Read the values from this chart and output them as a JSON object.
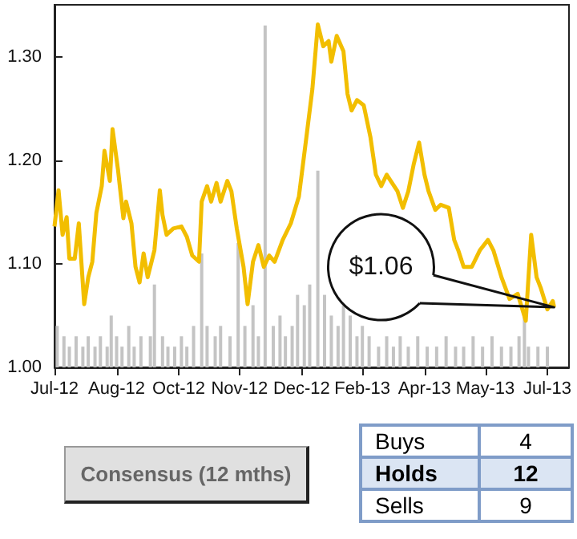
{
  "chart_data": [
    {
      "type": "line",
      "xlim": [
        "2012-07-01",
        "2013-07-17"
      ],
      "ylim": [
        1.0,
        1.35
      ],
      "xticks": [
        {
          "value": "2012-07-01",
          "label": "Jul-12"
        },
        {
          "value": "2012-08-16",
          "label": "Aug-12"
        },
        {
          "value": "2012-10-01",
          "label": "Oct-12"
        },
        {
          "value": "2012-11-15",
          "label": "Nov-12"
        },
        {
          "value": "2012-12-31",
          "label": "Dec-12"
        },
        {
          "value": "2013-02-14",
          "label": "Feb-13"
        },
        {
          "value": "2013-04-01",
          "label": "Apr-13"
        },
        {
          "value": "2013-05-16",
          "label": "May-13"
        },
        {
          "value": "2013-07-01",
          "label": "Jul-13"
        }
      ],
      "yticks": [
        {
          "value": 1.0,
          "label": "1.00"
        },
        {
          "value": 1.1,
          "label": "1.10"
        },
        {
          "value": 1.2,
          "label": "1.20"
        },
        {
          "value": 1.3,
          "label": "1.30"
        }
      ],
      "grid": false,
      "marker": "none",
      "annotations": [
        "$1.06"
      ],
      "series": [
        {
          "type": "bar",
          "color": "#c4c4c4",
          "x": [
            "2012-07-03",
            "2012-07-08",
            "2012-07-12",
            "2012-07-17",
            "2012-07-22",
            "2012-07-26",
            "2012-07-31",
            "2012-08-04",
            "2012-08-09",
            "2012-08-12",
            "2012-08-16",
            "2012-08-20",
            "2012-08-25",
            "2012-08-29",
            "2012-09-03",
            "2012-09-10",
            "2012-09-13",
            "2012-09-19",
            "2012-09-23",
            "2012-09-28",
            "2012-10-03",
            "2012-10-07",
            "2012-10-12",
            "2012-10-18",
            "2012-10-22",
            "2012-10-28",
            "2012-11-01",
            "2012-11-08",
            "2012-11-14",
            "2012-11-19",
            "2012-11-25",
            "2012-11-29",
            "2012-12-04",
            "2012-12-10",
            "2012-12-15",
            "2012-12-19",
            "2012-12-24",
            "2012-12-28",
            "2013-01-02",
            "2013-01-06",
            "2013-01-12",
            "2013-01-17",
            "2013-01-22",
            "2013-01-27",
            "2013-01-31",
            "2013-02-05",
            "2013-02-10",
            "2013-02-14",
            "2013-02-19",
            "2013-02-26",
            "2013-03-04",
            "2013-03-09",
            "2013-03-14",
            "2013-03-20",
            "2013-03-27",
            "2013-04-03",
            "2013-04-10",
            "2013-04-17",
            "2013-04-24",
            "2013-04-30",
            "2013-05-07",
            "2013-05-14",
            "2013-05-21",
            "2013-05-28",
            "2013-06-04",
            "2013-06-10",
            "2013-06-14",
            "2013-06-17",
            "2013-06-24",
            "2013-07-01"
          ],
          "values": [
            1.04,
            1.03,
            1.02,
            1.03,
            1.02,
            1.03,
            1.02,
            1.03,
            1.02,
            1.05,
            1.03,
            1.02,
            1.04,
            1.02,
            1.03,
            1.03,
            1.08,
            1.03,
            1.02,
            1.02,
            1.03,
            1.02,
            1.04,
            1.11,
            1.04,
            1.03,
            1.04,
            1.03,
            1.12,
            1.04,
            1.06,
            1.03,
            1.33,
            1.04,
            1.05,
            1.03,
            1.04,
            1.07,
            1.06,
            1.08,
            1.19,
            1.07,
            1.05,
            1.04,
            1.06,
            1.05,
            1.03,
            1.04,
            1.03,
            1.02,
            1.03,
            1.02,
            1.03,
            1.02,
            1.03,
            1.02,
            1.02,
            1.03,
            1.02,
            1.02,
            1.03,
            1.02,
            1.03,
            1.02,
            1.02,
            1.03,
            1.05,
            1.02,
            1.02,
            1.02
          ]
        },
        {
          "color": "#f2be00",
          "x": [
            "2012-07-01",
            "2012-07-04",
            "2012-07-07",
            "2012-07-10",
            "2012-07-12",
            "2012-07-16",
            "2012-07-19",
            "2012-07-23",
            "2012-07-26",
            "2012-07-29",
            "2012-08-01",
            "2012-08-05",
            "2012-08-07",
            "2012-08-11",
            "2012-08-13",
            "2012-08-17",
            "2012-08-21",
            "2012-08-23",
            "2012-08-27",
            "2012-08-30",
            "2012-09-02",
            "2012-09-05",
            "2012-09-08",
            "2012-09-13",
            "2012-09-17",
            "2012-09-19",
            "2012-09-22",
            "2012-09-27",
            "2012-10-03",
            "2012-10-07",
            "2012-10-11",
            "2012-10-16",
            "2012-10-18",
            "2012-10-22",
            "2012-10-25",
            "2012-10-29",
            "2012-11-01",
            "2012-11-06",
            "2012-11-09",
            "2012-11-13",
            "2012-11-18",
            "2012-11-21",
            "2012-11-25",
            "2012-11-29",
            "2012-12-03",
            "2012-12-07",
            "2012-12-11",
            "2012-12-17",
            "2012-12-23",
            "2012-12-29",
            "2013-01-04",
            "2013-01-08",
            "2013-01-12",
            "2013-01-16",
            "2013-01-20",
            "2013-01-22",
            "2013-01-26",
            "2013-01-31",
            "2013-02-03",
            "2013-02-06",
            "2013-02-10",
            "2013-02-15",
            "2013-02-20",
            "2013-02-24",
            "2013-02-28",
            "2013-03-04",
            "2013-03-08",
            "2013-03-12",
            "2013-03-16",
            "2013-03-20",
            "2013-03-24",
            "2013-03-28",
            "2013-04-01",
            "2013-04-04",
            "2013-04-09",
            "2013-04-13",
            "2013-04-19",
            "2013-04-23",
            "2013-04-26",
            "2013-04-30",
            "2013-05-06",
            "2013-05-12",
            "2013-05-18",
            "2013-05-22",
            "2013-05-28",
            "2013-06-03",
            "2013-06-09",
            "2013-06-15",
            "2013-06-19",
            "2013-06-23",
            "2013-06-26",
            "2013-07-01",
            "2013-07-05",
            "2013-07-06"
          ],
          "values": [
            1.136,
            1.171,
            1.128,
            1.145,
            1.105,
            1.105,
            1.139,
            1.061,
            1.087,
            1.102,
            1.149,
            1.175,
            1.209,
            1.18,
            1.23,
            1.191,
            1.144,
            1.16,
            1.139,
            1.097,
            1.082,
            1.11,
            1.087,
            1.113,
            1.171,
            1.147,
            1.128,
            1.134,
            1.136,
            1.126,
            1.108,
            1.102,
            1.16,
            1.175,
            1.16,
            1.178,
            1.16,
            1.18,
            1.17,
            1.134,
            1.097,
            1.061,
            1.102,
            1.118,
            1.097,
            1.108,
            1.102,
            1.123,
            1.139,
            1.165,
            1.227,
            1.269,
            1.331,
            1.31,
            1.315,
            1.295,
            1.32,
            1.305,
            1.264,
            1.248,
            1.258,
            1.253,
            1.222,
            1.186,
            1.175,
            1.186,
            1.178,
            1.17,
            1.154,
            1.17,
            1.196,
            1.217,
            1.186,
            1.17,
            1.152,
            1.157,
            1.154,
            1.123,
            1.113,
            1.097,
            1.097,
            1.113,
            1.123,
            1.113,
            1.087,
            1.066,
            1.071,
            1.045,
            1.128,
            1.087,
            1.077,
            1.056,
            1.064,
            1.058
          ]
        }
      ]
    },
    {
      "type": "other",
      "title": "Consensus (12 mths)",
      "categories": [
        "Buys",
        "Holds",
        "Sells"
      ],
      "values": [
        4,
        12,
        9
      ],
      "data_labels": true
    }
  ]
}
